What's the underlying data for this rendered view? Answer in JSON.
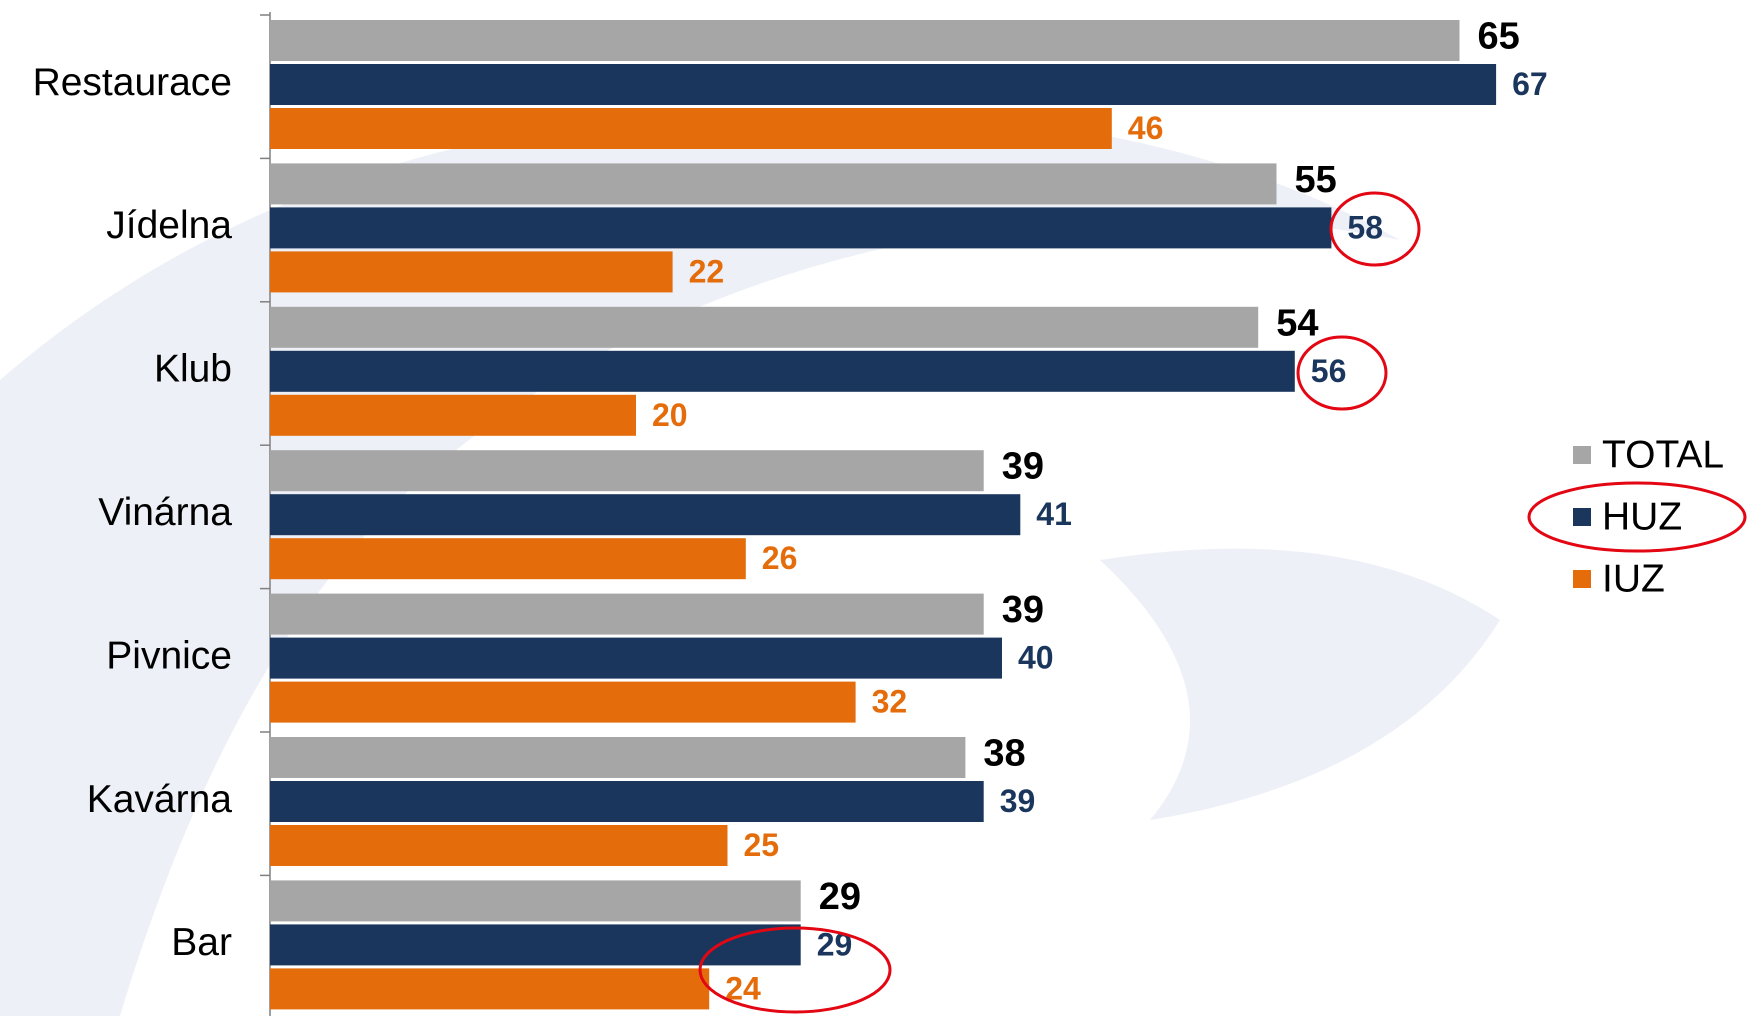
{
  "chart_data": {
    "type": "bar",
    "orientation": "horizontal",
    "categories": [
      "Restaurace",
      "Jídelna",
      "Klub",
      "Vinárna",
      "Pivnice",
      "Kavárna",
      "Bar"
    ],
    "series": [
      {
        "name": "TOTAL",
        "color": "#a6a6a6",
        "values": [
          65,
          55,
          54,
          39,
          39,
          38,
          29
        ]
      },
      {
        "name": "HUZ",
        "color": "#1b365d",
        "values": [
          67,
          58,
          56,
          41,
          40,
          39,
          29
        ]
      },
      {
        "name": "IUZ",
        "color": "#e46c0a",
        "values": [
          46,
          22,
          20,
          26,
          32,
          25,
          24
        ]
      }
    ],
    "xlim": [
      0,
      80
    ],
    "legend": "right"
  }
}
